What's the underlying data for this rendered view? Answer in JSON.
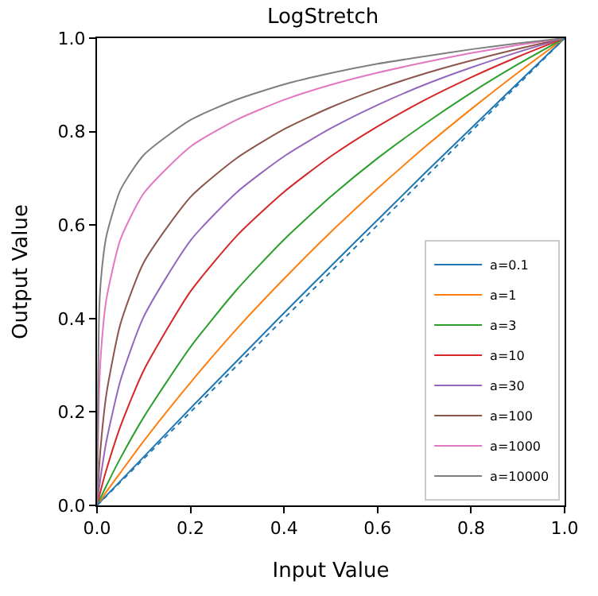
{
  "chart_data": {
    "type": "line",
    "title": "LogStretch",
    "xlabel": "Input Value",
    "ylabel": "Output Value",
    "x": [
      0,
      0.005,
      0.01,
      0.02,
      0.05,
      0.1,
      0.2,
      0.3,
      0.4,
      0.5,
      0.6,
      0.7,
      0.8,
      0.9,
      1.0
    ],
    "series": [
      {
        "name": "a=0.1",
        "color": "#1f77b4",
        "values": [
          0,
          0.005,
          0.011,
          0.021,
          0.052,
          0.104,
          0.208,
          0.31,
          0.412,
          0.512,
          0.611,
          0.71,
          0.807,
          0.904,
          1
        ]
      },
      {
        "name": "a=1",
        "color": "#ff7f0e",
        "values": [
          0,
          0.007,
          0.014,
          0.029,
          0.07,
          0.138,
          0.263,
          0.379,
          0.485,
          0.585,
          0.678,
          0.766,
          0.848,
          0.926,
          1
        ]
      },
      {
        "name": "a=3",
        "color": "#2ca02c",
        "values": [
          0,
          0.011,
          0.021,
          0.042,
          0.101,
          0.189,
          0.339,
          0.463,
          0.569,
          0.661,
          0.743,
          0.816,
          0.883,
          0.944,
          1
        ]
      },
      {
        "name": "a=10",
        "color": "#d62728",
        "values": [
          0,
          0.02,
          0.04,
          0.076,
          0.169,
          0.289,
          0.458,
          0.578,
          0.671,
          0.747,
          0.811,
          0.867,
          0.916,
          0.96,
          1
        ]
      },
      {
        "name": "a=30",
        "color": "#9467bd",
        "values": [
          0,
          0.041,
          0.076,
          0.137,
          0.267,
          0.404,
          0.567,
          0.671,
          0.747,
          0.807,
          0.857,
          0.9,
          0.937,
          0.97,
          1
        ]
      },
      {
        "name": "a=100",
        "color": "#8c564b",
        "values": [
          0,
          0.088,
          0.15,
          0.238,
          0.388,
          0.52,
          0.66,
          0.744,
          0.805,
          0.852,
          0.891,
          0.924,
          0.952,
          0.977,
          1
        ]
      },
      {
        "name": "a=1000",
        "color": "#e377c2",
        "values": [
          0,
          0.259,
          0.347,
          0.441,
          0.569,
          0.668,
          0.768,
          0.826,
          0.868,
          0.9,
          0.926,
          0.948,
          0.968,
          0.985,
          1
        ]
      },
      {
        "name": "a=10000",
        "color": "#7f7f7f",
        "values": [
          0,
          0.427,
          0.501,
          0.576,
          0.675,
          0.75,
          0.825,
          0.869,
          0.901,
          0.925,
          0.945,
          0.961,
          0.976,
          0.989,
          1
        ]
      },
      {
        "color": "#1f77b4",
        "line_style": "dotted",
        "x": [
          0,
          1
        ],
        "values": [
          0,
          1
        ]
      }
    ],
    "xlim": [
      0,
      1
    ],
    "ylim": [
      0,
      1
    ],
    "xticks": [
      {
        "value": 0,
        "label": "0.0"
      },
      0.2,
      0.4,
      0.6,
      0.8,
      {
        "value": 1,
        "label": "1.0"
      }
    ],
    "yticks": [
      {
        "value": 0,
        "label": "0.0"
      },
      0.2,
      0.4,
      0.6,
      0.8,
      {
        "value": 1,
        "label": "1.0"
      }
    ],
    "legend": "bottom right",
    "marker": "none",
    "line_style": "solid"
  }
}
